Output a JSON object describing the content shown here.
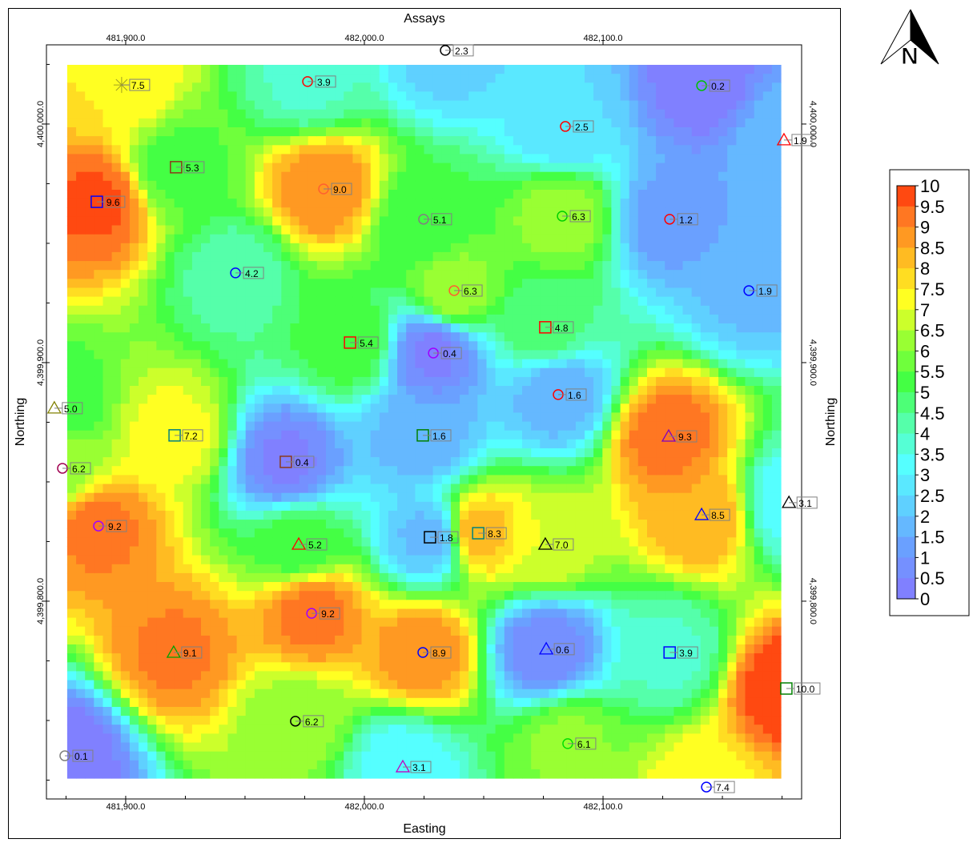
{
  "chart_data": {
    "type": "heatmap",
    "subtype": "contour-map",
    "title": "Assays",
    "xlabel": "Easting",
    "ylabel": "Northing",
    "xlim": [
      481866.8,
      482183.2
    ],
    "ylim": [
      4399717.1,
      4400033.2
    ],
    "grid_extent": {
      "x": [
        481875.5,
        482174.5
      ],
      "y": [
        4399725.8,
        4400024.8
      ]
    },
    "x_ticks": [
      {
        "value": 481900,
        "label": "481,900.0"
      },
      {
        "value": 482000,
        "label": "482,000.0"
      },
      {
        "value": 482100,
        "label": "482,100.0"
      }
    ],
    "y_ticks": [
      {
        "value": 4400000,
        "label": "4,400,000.0"
      },
      {
        "value": 4399900,
        "label": "4,399,900.0"
      },
      {
        "value": 4399800,
        "label": "4,399,800.0"
      }
    ],
    "contour_interval": 0.5,
    "contour_labels": [
      "2.0",
      "4.0",
      "6.0",
      "8.0"
    ],
    "color_scale": {
      "stops": [
        [
          0,
          "#8080ff"
        ],
        [
          1,
          "#6aa0ff"
        ],
        [
          2,
          "#5fd0ff"
        ],
        [
          3,
          "#55ffff"
        ],
        [
          4,
          "#55ffaa"
        ],
        [
          5,
          "#44ff44"
        ],
        [
          6,
          "#99ff33"
        ],
        [
          7,
          "#ffff22"
        ],
        [
          8,
          "#ffbb22"
        ],
        [
          9,
          "#ff7722"
        ],
        [
          10,
          "#ff1a00"
        ]
      ],
      "labels": [
        "10",
        "9.5",
        "9",
        "8.5",
        "8",
        "7.5",
        "7",
        "6.5",
        "6",
        "5.5",
        "5",
        "4.5",
        "4",
        "3.5",
        "3",
        "2.5",
        "2",
        "1.5",
        "1",
        "0.5",
        "0"
      ]
    },
    "points": [
      {
        "x": 481898.3,
        "y": 4400016.4,
        "value": 7.5,
        "label": "7.5",
        "symbol": "star",
        "color": "#a0a020"
      },
      {
        "x": 481976.2,
        "y": 4400017.8,
        "value": 3.9,
        "label": "3.9",
        "symbol": "circle",
        "color": "#ff0000"
      },
      {
        "x": 482033.9,
        "y": 4400030.9,
        "value": 2.3,
        "label": "2.3",
        "symbol": "circle",
        "color": "#000000"
      },
      {
        "x": 482141.3,
        "y": 4400016.1,
        "value": 0.2,
        "label": "0.2",
        "symbol": "circle",
        "color": "#00c000"
      },
      {
        "x": 482084.2,
        "y": 4399999.0,
        "value": 2.5,
        "label": "2.5",
        "symbol": "circle",
        "color": "#ff0000"
      },
      {
        "x": 482175.8,
        "y": 4399993.3,
        "value": 1.9,
        "label": "1.9",
        "symbol": "triangle",
        "color": "#ff0000"
      },
      {
        "x": 481921.1,
        "y": 4399981.9,
        "value": 5.3,
        "label": "5.3",
        "symbol": "square",
        "color": "#8b3a1a"
      },
      {
        "x": 481887.9,
        "y": 4399967.4,
        "value": 9.6,
        "label": "9.6",
        "symbol": "square",
        "color": "#0000ff"
      },
      {
        "x": 481982.9,
        "y": 4399972.8,
        "value": 9.0,
        "label": "9.0",
        "symbol": "circle",
        "color": "#ff6030"
      },
      {
        "x": 482024.8,
        "y": 4399960.1,
        "value": 5.1,
        "label": "5.1",
        "symbol": "circle",
        "color": "#808080"
      },
      {
        "x": 482082.9,
        "y": 4399961.4,
        "value": 6.3,
        "label": "6.3",
        "symbol": "circle",
        "color": "#00d000"
      },
      {
        "x": 482127.9,
        "y": 4399960.1,
        "value": 1.2,
        "label": "1.2",
        "symbol": "circle",
        "color": "#ff0000"
      },
      {
        "x": 481946.0,
        "y": 4399937.6,
        "value": 4.2,
        "label": "4.2",
        "symbol": "circle",
        "color": "#0000ff"
      },
      {
        "x": 482037.6,
        "y": 4399930.2,
        "value": 6.3,
        "label": "6.3",
        "symbol": "circle",
        "color": "#ff6030"
      },
      {
        "x": 482161.1,
        "y": 4399930.2,
        "value": 1.9,
        "label": "1.9",
        "symbol": "circle",
        "color": "#0000ff"
      },
      {
        "x": 482075.8,
        "y": 4399914.8,
        "value": 4.8,
        "label": "4.8",
        "symbol": "square",
        "color": "#ff0000"
      },
      {
        "x": 481994.0,
        "y": 4399908.4,
        "value": 5.4,
        "label": "5.4",
        "symbol": "square",
        "color": "#ff0000"
      },
      {
        "x": 482028.9,
        "y": 4399904.0,
        "value": 0.4,
        "label": "0.4",
        "symbol": "circle",
        "color": "#a000ff"
      },
      {
        "x": 482081.2,
        "y": 4399886.6,
        "value": 1.6,
        "label": "1.6",
        "symbol": "circle",
        "color": "#ff0000"
      },
      {
        "x": 481870.1,
        "y": 4399880.9,
        "value": 5.0,
        "label": "5.0",
        "symbol": "triangle",
        "color": "#808000"
      },
      {
        "x": 481920.5,
        "y": 4399869.5,
        "value": 7.2,
        "label": "7.2",
        "symbol": "square",
        "color": "#008080"
      },
      {
        "x": 482024.5,
        "y": 4399869.5,
        "value": 1.6,
        "label": "1.6",
        "symbol": "square",
        "color": "#008000"
      },
      {
        "x": 482127.5,
        "y": 4399869.1,
        "value": 9.3,
        "label": "9.3",
        "symbol": "triangle",
        "color": "#8000c0"
      },
      {
        "x": 481967.1,
        "y": 4399858.4,
        "value": 0.4,
        "label": "0.4",
        "symbol": "square",
        "color": "#8b3a1a"
      },
      {
        "x": 481873.5,
        "y": 4399855.7,
        "value": 6.2,
        "label": "6.2",
        "symbol": "circle",
        "color": "#a00050"
      },
      {
        "x": 482177.9,
        "y": 4399841.3,
        "value": 3.1,
        "label": "3.1",
        "symbol": "triangle",
        "color": "#000000"
      },
      {
        "x": 482141.3,
        "y": 4399836.2,
        "value": 8.5,
        "label": "8.5",
        "symbol": "triangle",
        "color": "#0000ff"
      },
      {
        "x": 481888.6,
        "y": 4399831.5,
        "value": 9.2,
        "label": "9.2",
        "symbol": "circle",
        "color": "#a000ff"
      },
      {
        "x": 482027.5,
        "y": 4399826.8,
        "value": 1.8,
        "label": "1.8",
        "symbol": "square",
        "color": "#000000"
      },
      {
        "x": 482047.7,
        "y": 4399828.5,
        "value": 8.3,
        "label": "8.3",
        "symbol": "square",
        "color": "#008080"
      },
      {
        "x": 482075.8,
        "y": 4399823.8,
        "value": 7.0,
        "label": "7.0",
        "symbol": "triangle",
        "color": "#000000"
      },
      {
        "x": 481972.5,
        "y": 4399823.8,
        "value": 5.2,
        "label": "5.2",
        "symbol": "triangle",
        "color": "#ff0000"
      },
      {
        "x": 481977.9,
        "y": 4399794.9,
        "value": 9.2,
        "label": "9.2",
        "symbol": "circle",
        "color": "#a000ff"
      },
      {
        "x": 481920.1,
        "y": 4399778.5,
        "value": 9.1,
        "label": "9.1",
        "symbol": "triangle",
        "color": "#00a000"
      },
      {
        "x": 482024.5,
        "y": 4399778.5,
        "value": 8.9,
        "label": "8.9",
        "symbol": "circle",
        "color": "#0000ff"
      },
      {
        "x": 482076.2,
        "y": 4399779.9,
        "value": 0.6,
        "label": "0.6",
        "symbol": "triangle",
        "color": "#0000ff"
      },
      {
        "x": 482127.9,
        "y": 4399778.5,
        "value": 3.9,
        "label": "3.9",
        "symbol": "square",
        "color": "#0000ff"
      },
      {
        "x": 482176.8,
        "y": 4399763.4,
        "value": 10.0,
        "label": "10.0",
        "symbol": "square",
        "color": "#008000"
      },
      {
        "x": 481971.1,
        "y": 4399749.7,
        "value": 6.2,
        "label": "6.2",
        "symbol": "circle",
        "color": "#000000"
      },
      {
        "x": 482085.2,
        "y": 4399740.3,
        "value": 6.1,
        "label": "6.1",
        "symbol": "circle",
        "color": "#00e000"
      },
      {
        "x": 481874.5,
        "y": 4399735.2,
        "value": 0.1,
        "label": "0.1",
        "symbol": "circle",
        "color": "#808080"
      },
      {
        "x": 482016.1,
        "y": 4399730.5,
        "value": 3.1,
        "label": "3.1",
        "symbol": "triangle",
        "color": "#c000c0"
      },
      {
        "x": 482143.3,
        "y": 4399722.1,
        "value": 7.4,
        "label": "7.4",
        "symbol": "circle",
        "color": "#0000ff"
      }
    ]
  },
  "north_arrow": {
    "label": "N"
  }
}
